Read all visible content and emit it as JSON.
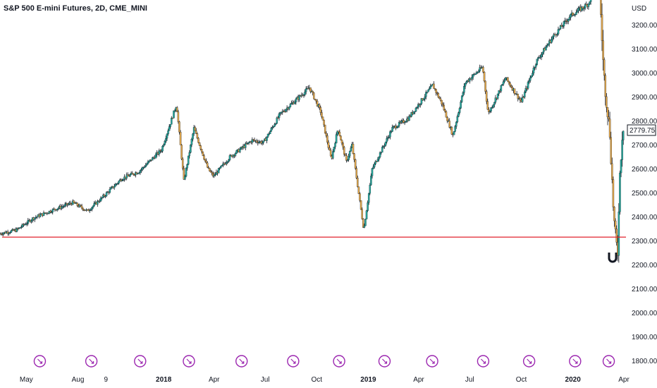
{
  "chart_data": {
    "type": "candlestick",
    "title": "S&P 500 E-mini Futures, 2D, CME_MINI",
    "currency_label": "USD",
    "last_price_label": "2779.75",
    "y_ticks": [
      "3200.00",
      "3100.00",
      "3000.00",
      "2900.00",
      "2800.00",
      "2700.00",
      "2600.00",
      "2500.00",
      "2400.00",
      "2300.00",
      "2200.00",
      "2100.00",
      "2000.00",
      "1900.00",
      "1800.00"
    ],
    "y_tick_values": [
      3200,
      3100,
      3000,
      2900,
      2800,
      2700,
      2600,
      2500,
      2400,
      2300,
      2200,
      2100,
      2000,
      1900,
      1800
    ],
    "ylim": [
      1775,
      3305
    ],
    "x_labels": [
      {
        "text": "May",
        "date": "2017-05-01",
        "bold": false
      },
      {
        "text": "Aug",
        "date": "2017-08-01",
        "bold": false
      },
      {
        "text": "9",
        "date": "2017-09-20",
        "bold": false
      },
      {
        "text": "2018",
        "date": "2018-01-01",
        "bold": true
      },
      {
        "text": "Apr",
        "date": "2018-04-01",
        "bold": false
      },
      {
        "text": "Jul",
        "date": "2018-07-01",
        "bold": false
      },
      {
        "text": "Oct",
        "date": "2018-10-01",
        "bold": false
      },
      {
        "text": "2019",
        "date": "2019-01-01",
        "bold": true
      },
      {
        "text": "Apr",
        "date": "2019-04-01",
        "bold": false
      },
      {
        "text": "Jul",
        "date": "2019-07-01",
        "bold": false
      },
      {
        "text": "Oct",
        "date": "2019-10-01",
        "bold": false
      },
      {
        "text": "2020",
        "date": "2020-01-01",
        "bold": true
      },
      {
        "text": "Apr",
        "date": "2020-04-01",
        "bold": false
      }
    ],
    "xlim": [
      "2017-03-15",
      "2020-04-01"
    ],
    "horizontal_line": {
      "value": 2316,
      "color": "#e0222c"
    },
    "event_markers": [
      "2017-05-25",
      "2017-08-25",
      "2017-11-20",
      "2018-02-15",
      "2018-05-20",
      "2018-08-20",
      "2018-11-10",
      "2019-01-30",
      "2019-04-25",
      "2019-07-25",
      "2019-10-15",
      "2020-01-05",
      "2020-03-05"
    ],
    "colors": {
      "up": "#26a69a",
      "down": "#e0a64a",
      "marker": "#9c27b0"
    },
    "series_path": [
      [
        "2017-03-15",
        2330
      ],
      [
        "2017-04-15",
        2345
      ],
      [
        "2017-05-15",
        2395
      ],
      [
        "2017-06-20",
        2430
      ],
      [
        "2017-07-25",
        2460
      ],
      [
        "2017-08-20",
        2425
      ],
      [
        "2017-09-15",
        2480
      ],
      [
        "2017-10-20",
        2560
      ],
      [
        "2017-11-20",
        2590
      ],
      [
        "2017-12-30",
        2680
      ],
      [
        "2018-01-26",
        2870
      ],
      [
        "2018-02-08",
        2550
      ],
      [
        "2018-02-26",
        2770
      ],
      [
        "2018-03-23",
        2600
      ],
      [
        "2018-04-02",
        2570
      ],
      [
        "2018-05-01",
        2650
      ],
      [
        "2018-06-10",
        2720
      ],
      [
        "2018-06-30",
        2710
      ],
      [
        "2018-07-30",
        2830
      ],
      [
        "2018-08-28",
        2890
      ],
      [
        "2018-09-20",
        2940
      ],
      [
        "2018-10-10",
        2840
      ],
      [
        "2018-10-29",
        2640
      ],
      [
        "2018-11-10",
        2770
      ],
      [
        "2018-11-25",
        2630
      ],
      [
        "2018-12-05",
        2700
      ],
      [
        "2018-12-26",
        2346
      ],
      [
        "2019-01-10",
        2600
      ],
      [
        "2019-02-15",
        2770
      ],
      [
        "2019-03-15",
        2810
      ],
      [
        "2019-04-28",
        2950
      ],
      [
        "2019-05-15",
        2870
      ],
      [
        "2019-06-03",
        2740
      ],
      [
        "2019-06-25",
        2960
      ],
      [
        "2019-07-26",
        3025
      ],
      [
        "2019-08-05",
        2830
      ],
      [
        "2019-09-05",
        2980
      ],
      [
        "2019-10-03",
        2880
      ],
      [
        "2019-10-30",
        3050
      ],
      [
        "2019-11-28",
        3150
      ],
      [
        "2019-12-30",
        3240
      ],
      [
        "2020-01-31",
        3290
      ],
      [
        "2020-02-07",
        3340
      ],
      [
        "2020-02-19",
        3390
      ],
      [
        "2020-02-27",
        3000
      ],
      [
        "2020-03-09",
        2750
      ],
      [
        "2020-03-16",
        2400
      ],
      [
        "2020-03-20",
        2300
      ],
      [
        "2020-03-23",
        2250
      ],
      [
        "2020-03-26",
        2540
      ],
      [
        "2020-04-01",
        2780
      ]
    ]
  }
}
